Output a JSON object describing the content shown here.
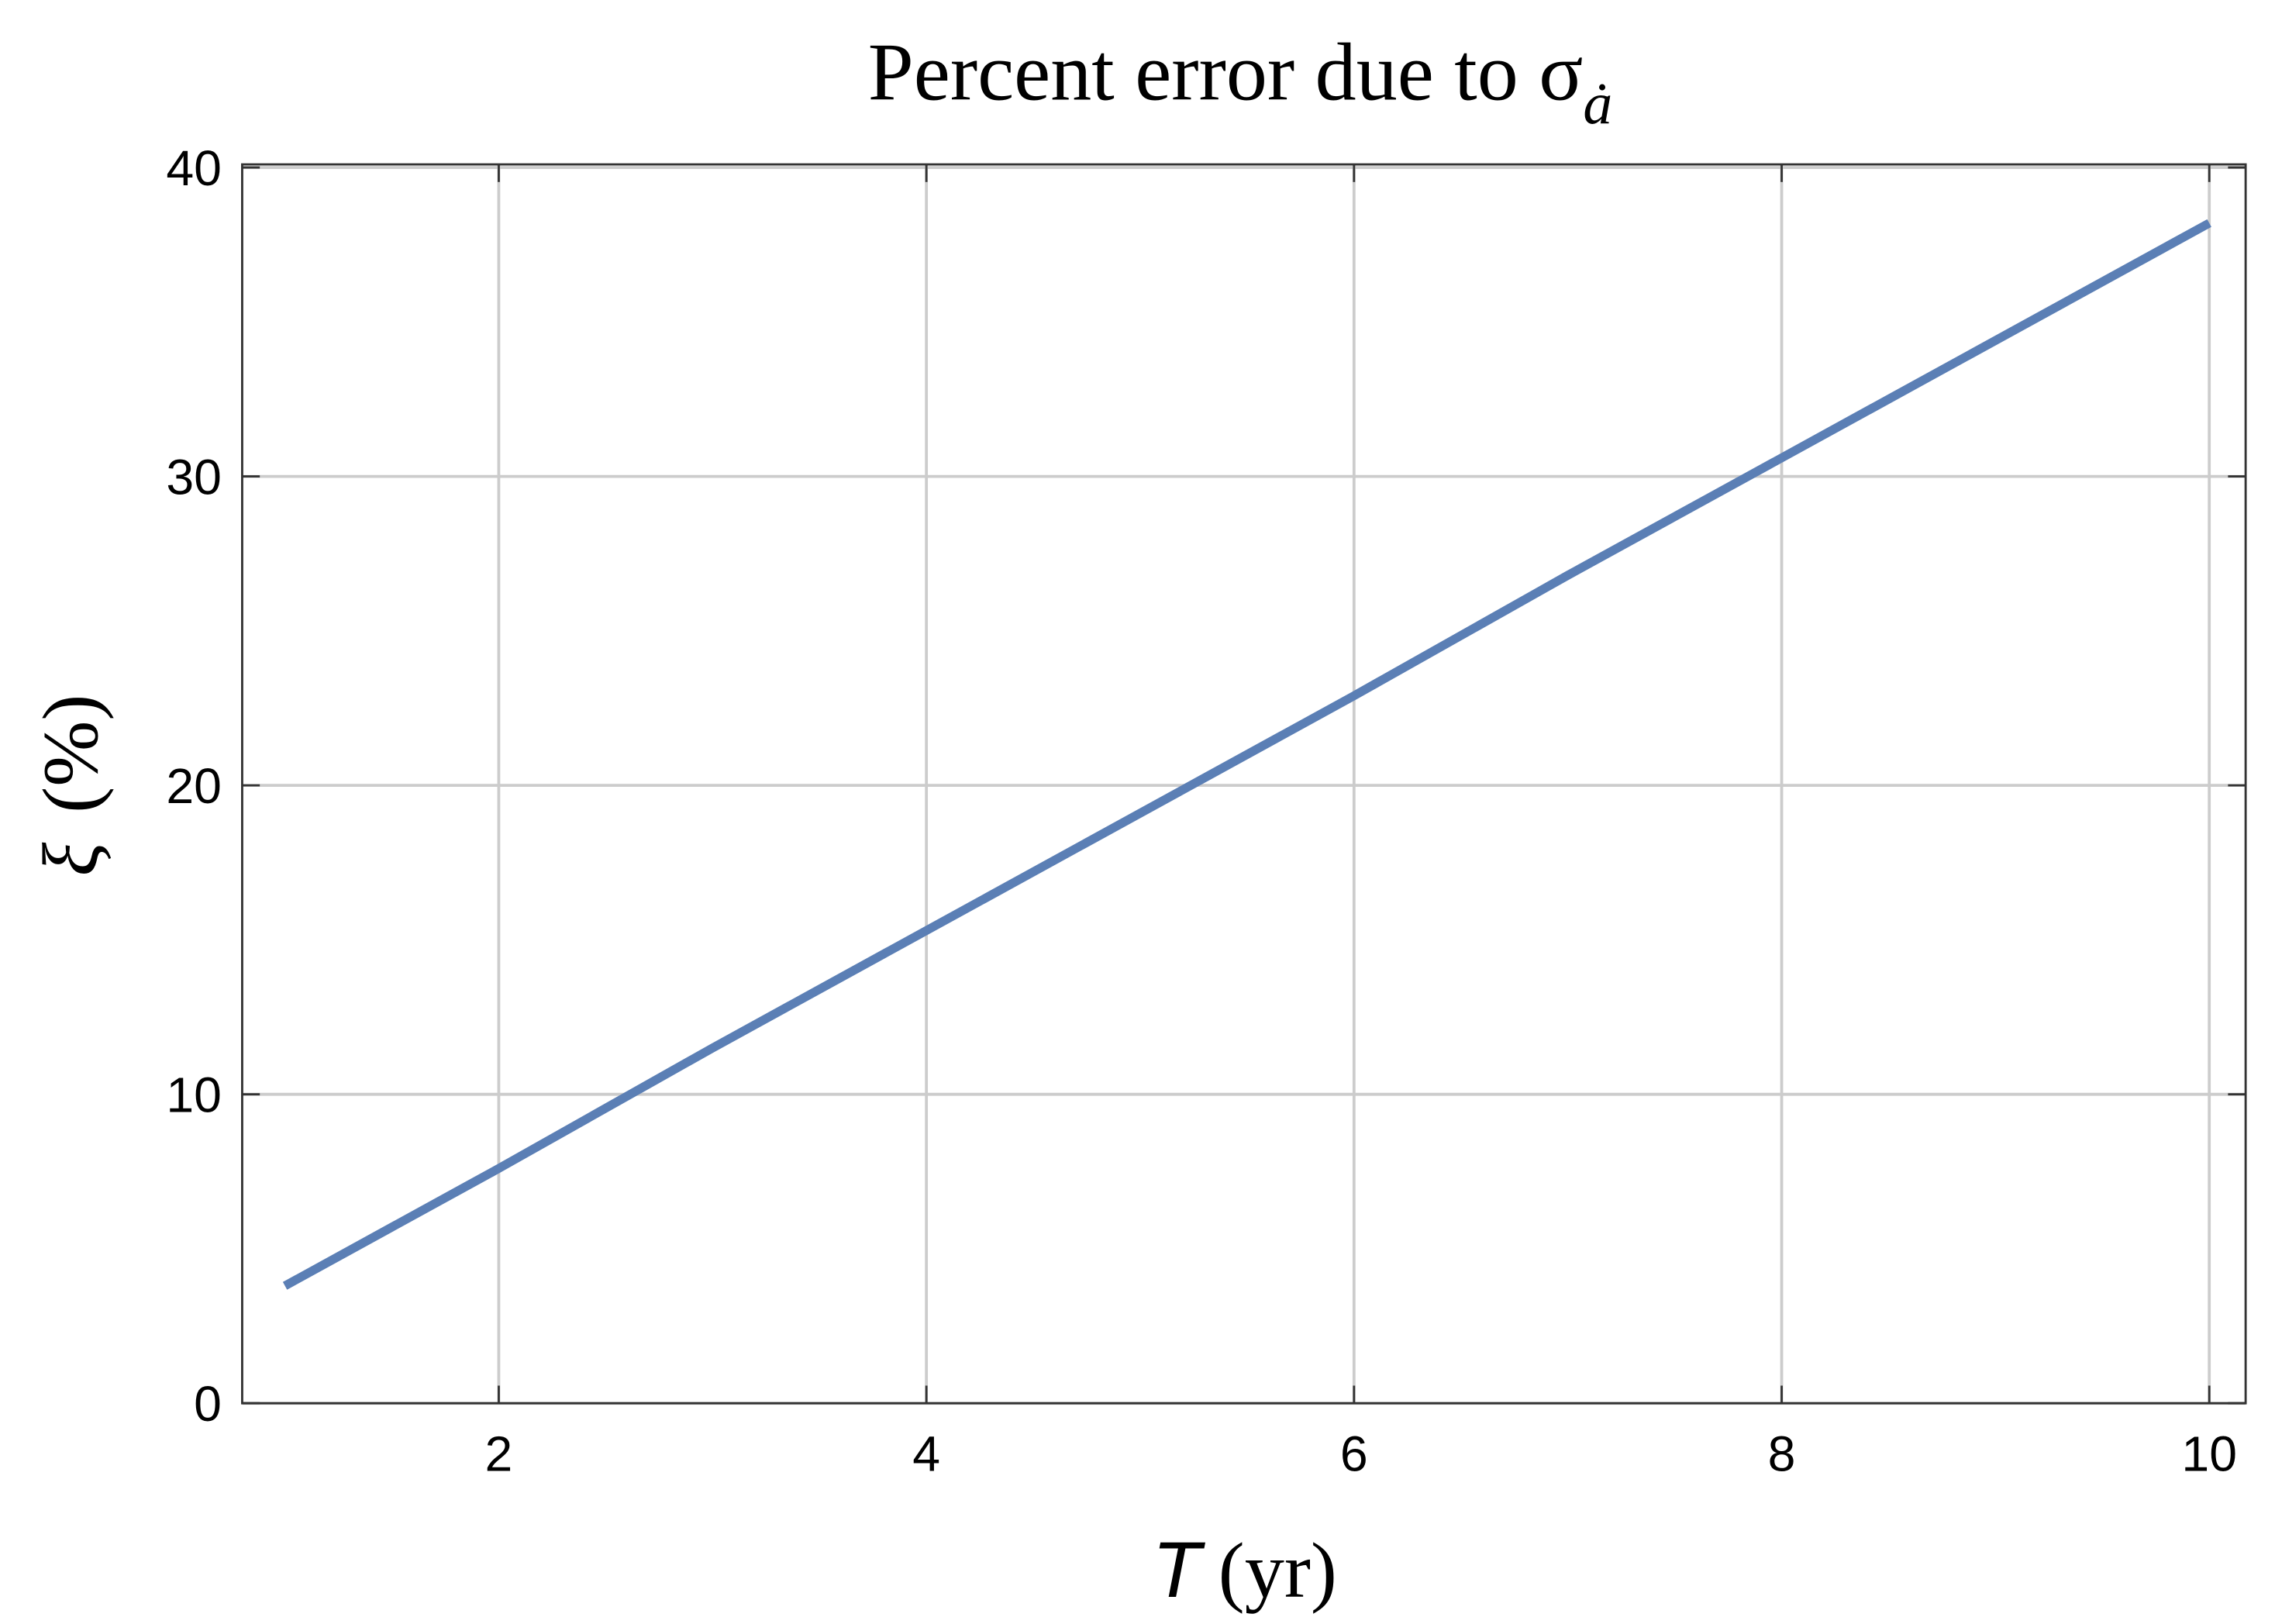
{
  "chart_data": {
    "type": "line",
    "title": "Percent error due to σ",
    "title_subscript": "ȧ",
    "xlabel_symbol": "T",
    "xlabel_unit": "(yr)",
    "ylabel_symbol": "ξ",
    "ylabel_unit": "(%)",
    "x": [
      1,
      2,
      3,
      4,
      5,
      6,
      7,
      8,
      9,
      10
    ],
    "series": [
      {
        "color": "#5b7fb5",
        "values": [
          3.8,
          7.6,
          11.5,
          15.3,
          19.1,
          22.9,
          26.8,
          30.6,
          34.4,
          38.2
        ]
      }
    ],
    "xlim": [
      0.8,
      10.17
    ],
    "xticks": [
      2,
      4,
      6,
      8,
      10
    ],
    "ylim": [
      0,
      40.1
    ],
    "yticks": [
      0,
      10,
      20,
      30,
      40
    ],
    "grid": true
  }
}
